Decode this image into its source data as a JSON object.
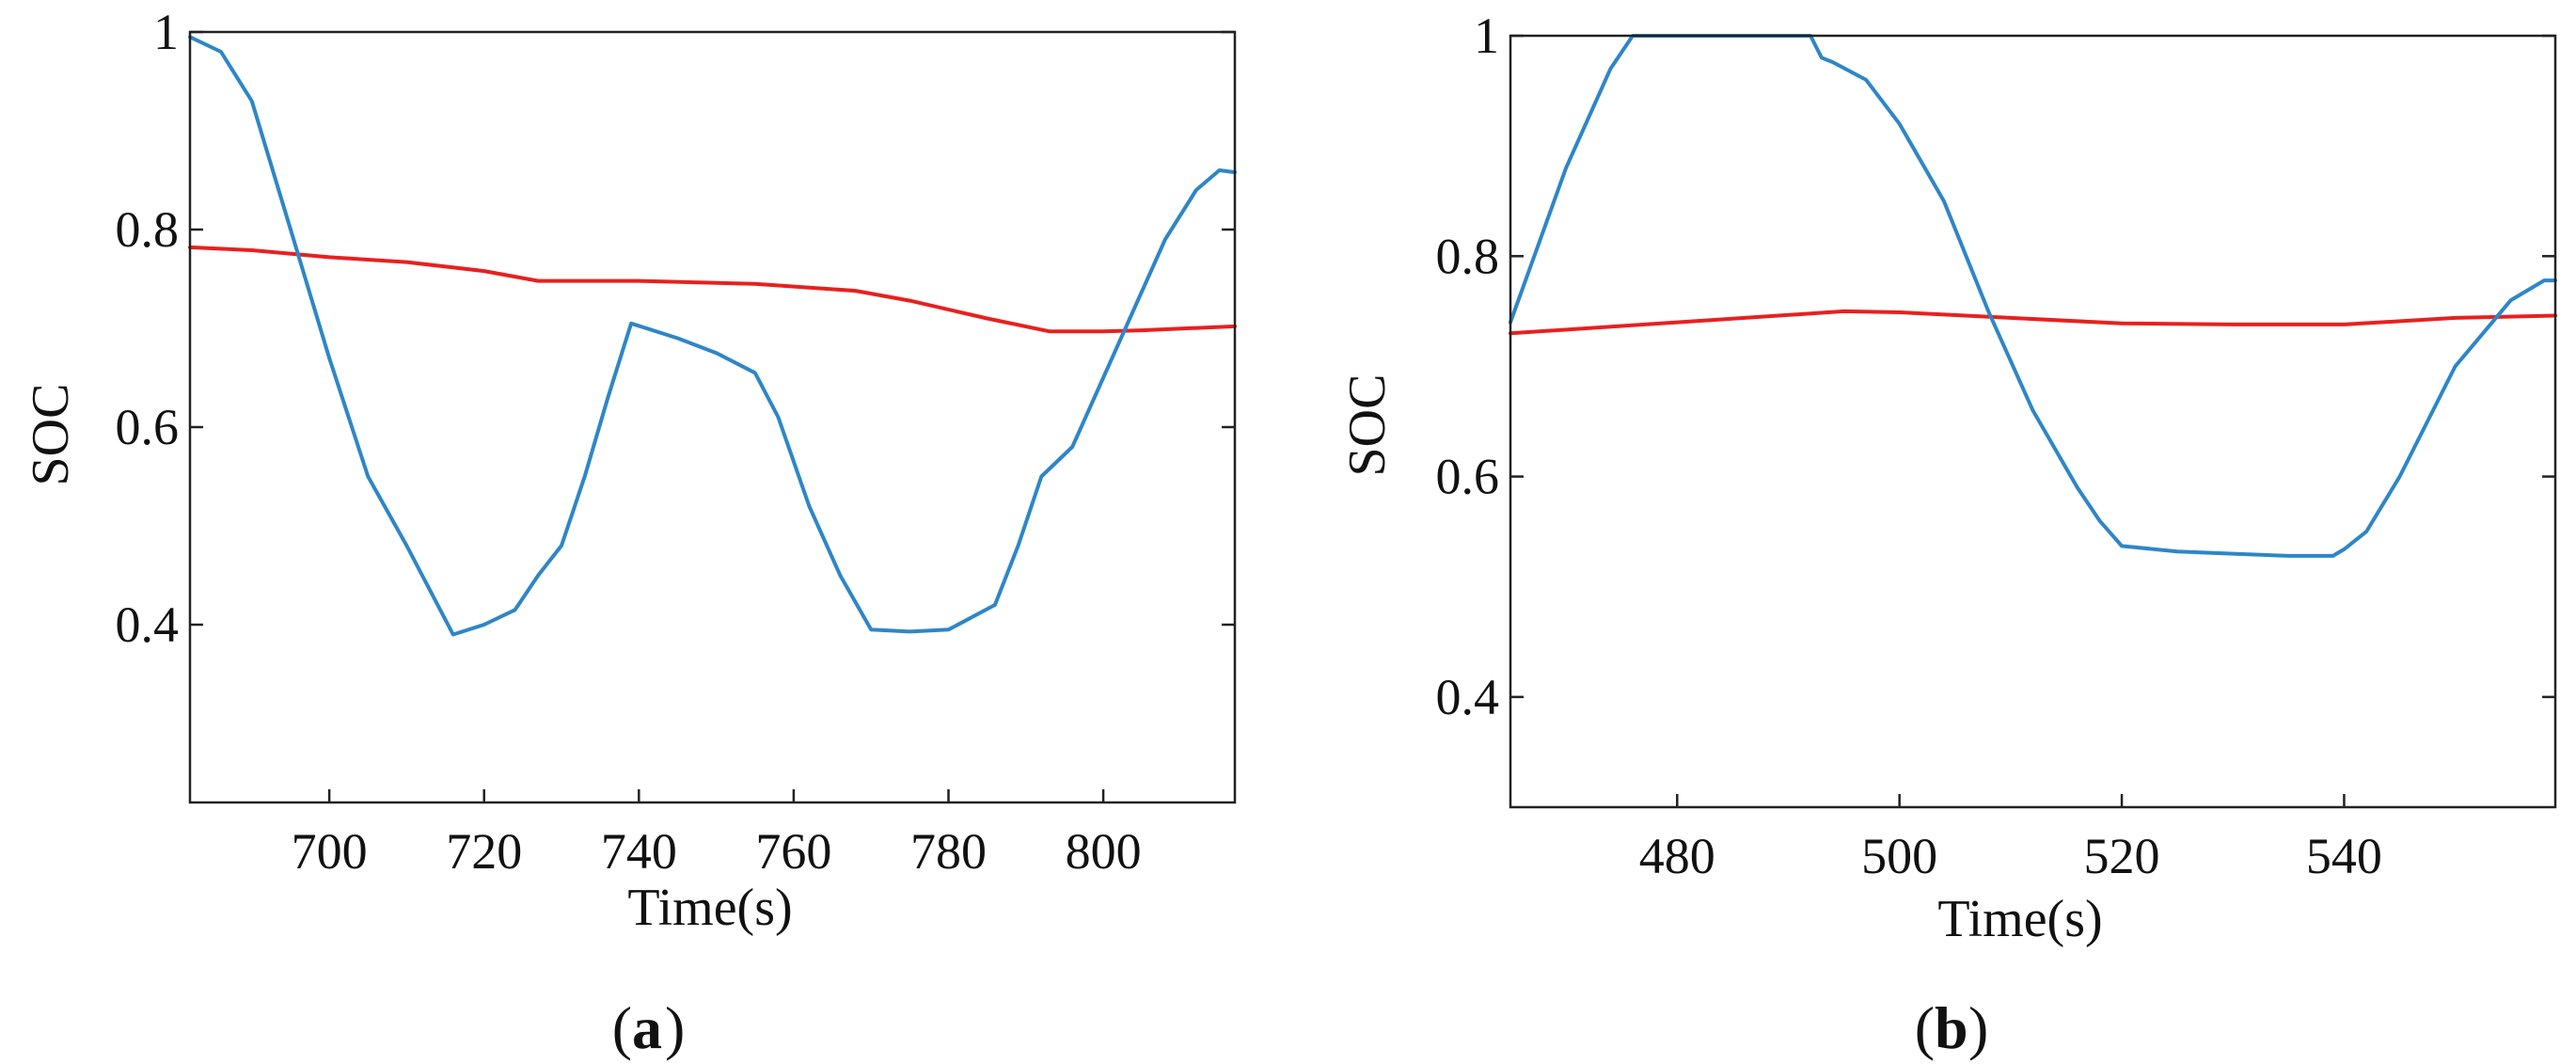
{
  "chart_data": [
    {
      "type": "line",
      "panel": "a",
      "caption_letter": "a",
      "xlabel": "Time(s)",
      "ylabel": "SOC",
      "xlim": [
        682,
        817
      ],
      "ylim": [
        0.22,
        1.0
      ],
      "xticks": [
        700,
        720,
        740,
        760,
        780,
        800
      ],
      "yticks": [
        0.4,
        0.6,
        0.8,
        1
      ],
      "ytick_labels": [
        "0.4",
        "0.6",
        "0.8",
        "1"
      ],
      "grid": false,
      "series": [
        {
          "name": "SOC (blue)",
          "color": "#2e86c8",
          "x": [
            682,
            686,
            690,
            695,
            700,
            705,
            710,
            716,
            720,
            724,
            727,
            730,
            733,
            736,
            739,
            745,
            750,
            755,
            758,
            762,
            766,
            770,
            775,
            780,
            786,
            789,
            792,
            796,
            800,
            804,
            808,
            812,
            815,
            817
          ],
          "y": [
            0.995,
            0.98,
            0.93,
            0.8,
            0.67,
            0.55,
            0.48,
            0.39,
            0.4,
            0.415,
            0.45,
            0.48,
            0.55,
            0.63,
            0.705,
            0.69,
            0.675,
            0.655,
            0.61,
            0.52,
            0.45,
            0.395,
            0.393,
            0.395,
            0.42,
            0.48,
            0.55,
            0.58,
            0.65,
            0.72,
            0.79,
            0.84,
            0.86,
            0.858
          ]
        },
        {
          "name": "SOC (red)",
          "color": "#e8201f",
          "x": [
            682,
            690,
            700,
            710,
            720,
            727,
            740,
            755,
            768,
            775,
            785,
            793,
            800,
            805,
            817
          ],
          "y": [
            0.782,
            0.779,
            0.772,
            0.767,
            0.758,
            0.748,
            0.748,
            0.745,
            0.738,
            0.728,
            0.71,
            0.697,
            0.697,
            0.698,
            0.702
          ]
        }
      ]
    },
    {
      "type": "line",
      "panel": "b",
      "caption_letter": "b",
      "xlabel": "Time(s)",
      "ylabel": "SOC",
      "xlim": [
        465,
        559
      ],
      "ylim": [
        0.3,
        1.0
      ],
      "xticks": [
        480,
        500,
        520,
        540
      ],
      "yticks": [
        0.4,
        0.6,
        0.8,
        1
      ],
      "ytick_labels": [
        "0.4",
        "0.6",
        "0.8",
        "1"
      ],
      "grid": false,
      "series": [
        {
          "name": "SOC (blue)",
          "color": "#2e86c8",
          "x": [
            465,
            470,
            474,
            476,
            480,
            485,
            490,
            492,
            493,
            494,
            497,
            500,
            504,
            508,
            512,
            516,
            518,
            520,
            525,
            530,
            535,
            539,
            540,
            542,
            545,
            550,
            555,
            558,
            559
          ],
          "y": [
            0.74,
            0.88,
            0.97,
            1.0,
            1.0,
            1.0,
            1.0,
            1.0,
            0.98,
            0.976,
            0.96,
            0.92,
            0.85,
            0.75,
            0.66,
            0.59,
            0.56,
            0.537,
            0.532,
            0.53,
            0.528,
            0.528,
            0.534,
            0.55,
            0.6,
            0.7,
            0.76,
            0.778,
            0.778
          ]
        },
        {
          "name": "SOC (red)",
          "color": "#e8201f",
          "x": [
            465,
            480,
            495,
            500,
            510,
            520,
            530,
            540,
            550,
            559
          ],
          "y": [
            0.73,
            0.74,
            0.75,
            0.749,
            0.744,
            0.739,
            0.738,
            0.738,
            0.744,
            0.746
          ]
        }
      ]
    }
  ]
}
